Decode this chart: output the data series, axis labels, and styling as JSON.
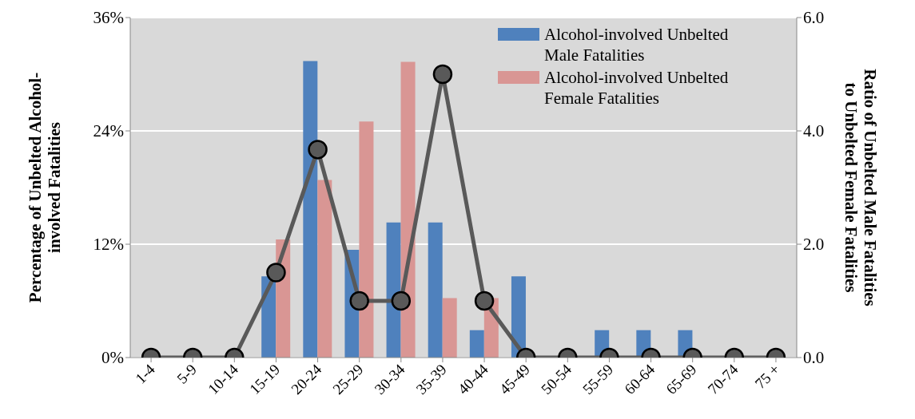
{
  "chart_data": {
    "type": "bar",
    "categories": [
      "1-4",
      "5-9",
      "10-14",
      "15-19",
      "20-24",
      "25-29",
      "30-34",
      "35-39",
      "40-44",
      "45-49",
      "50-54",
      "55-59",
      "60-64",
      "65-69",
      "70-74",
      "75 +"
    ],
    "ylabel": "Percentage of Unbelted Alcohol-involved Fatalities",
    "y2label": "Ratio of Unbelted Male Fatalities to Unbelted Female Fatalities",
    "series": [
      {
        "name": "Alcohol-involved Unbelted Male Fatalities",
        "color": "#4f81bd",
        "values": [
          0,
          0,
          0,
          8.6,
          31.4,
          11.4,
          14.3,
          14.3,
          2.9,
          8.6,
          0,
          2.9,
          2.9,
          2.9,
          0,
          0
        ]
      },
      {
        "name": "Alcohol-involved Unbelted Female Fatalities",
        "color": "#d99694",
        "values": [
          0,
          0,
          0,
          12.5,
          18.8,
          25.0,
          31.3,
          6.3,
          6.3,
          0,
          0,
          0,
          0,
          0,
          0,
          0
        ]
      },
      {
        "type": "line",
        "axis": "y2",
        "color": "#595959",
        "marker": "circle",
        "values": [
          0,
          0,
          0,
          1.5,
          3.67,
          1,
          1,
          5,
          1,
          0,
          0,
          0,
          0,
          0,
          0,
          0
        ]
      }
    ],
    "ylim": [
      0,
      36
    ],
    "yticks": [
      {
        "value": 0,
        "label": "0%"
      },
      {
        "value": 12,
        "label": "12%"
      },
      {
        "value": 24,
        "label": "24%"
      },
      {
        "value": 36,
        "label": "36%"
      }
    ],
    "y2lim": [
      0,
      6
    ],
    "y2ticks": [
      {
        "value": 0,
        "label": "0.0"
      },
      {
        "value": 2,
        "label": "2.0"
      },
      {
        "value": 4,
        "label": "4.0"
      },
      {
        "value": 6,
        "label": "6.0"
      }
    ],
    "grid": "y",
    "legend": "top right"
  }
}
